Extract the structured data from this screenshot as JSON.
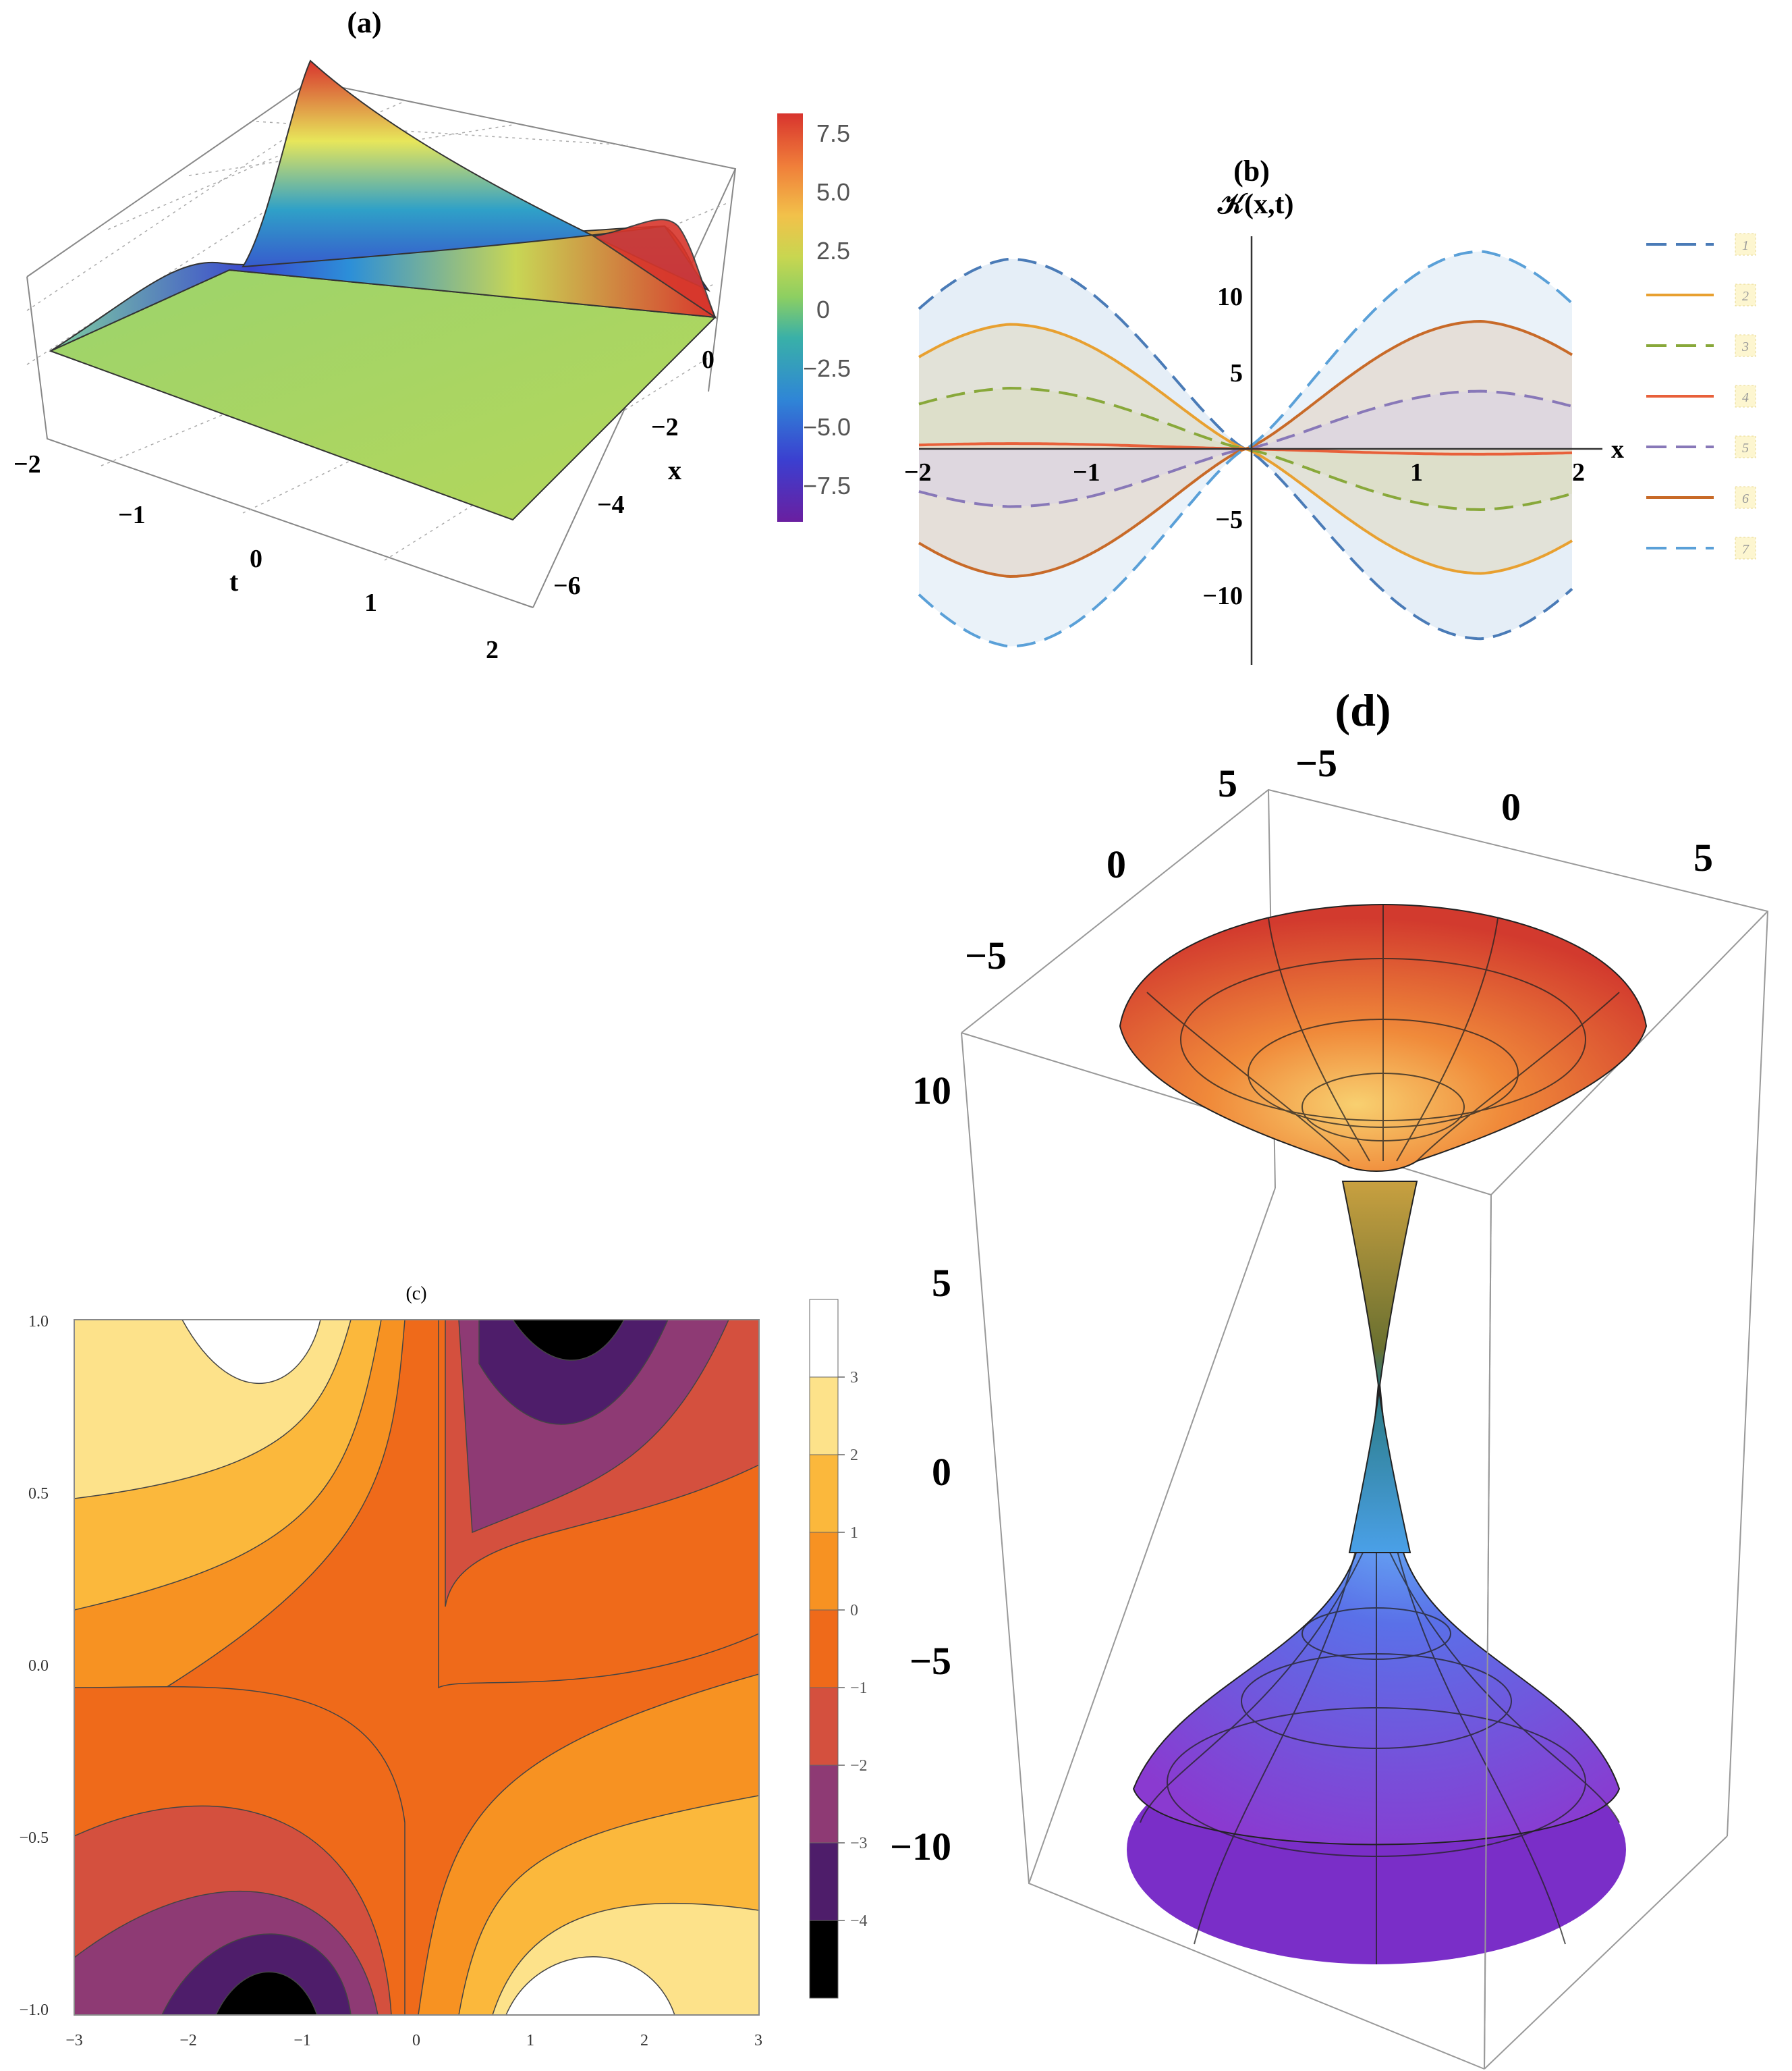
{
  "chart_data": [
    {
      "id": "a",
      "type": "surface3d",
      "title": "(a)",
      "xlabel": "x",
      "ylabel": "t",
      "x_ticks": [
        "0",
        "−2",
        "−4",
        "−6"
      ],
      "t_ticks": [
        "−2",
        "−1",
        "0",
        "1",
        "2"
      ],
      "xlim": [
        -7,
        1
      ],
      "tlim": [
        -2,
        2
      ],
      "colorbar": {
        "ticks": [
          "7.5",
          "5.0",
          "2.5",
          "0",
          "−2.5",
          "−5.0",
          "−7.5"
        ],
        "range": [
          -9,
          8.5
        ],
        "colors": [
          "#6a1fa0",
          "#3b3fd0",
          "#2f86d6",
          "#39b0a8",
          "#8ccf62",
          "#c9d650",
          "#f2c14a",
          "#f07f3a",
          "#d8342e"
        ]
      }
    },
    {
      "id": "b",
      "type": "line",
      "title": "(b)",
      "ylabel": "𝒦(x,t)",
      "xlabel": "x",
      "xlim": [
        -2,
        2
      ],
      "ylim": [
        -14,
        14
      ],
      "x_ticks": [
        "−2",
        "−1",
        "1",
        "2"
      ],
      "y_ticks": [
        "10",
        "5",
        "−5",
        "−10"
      ],
      "series": [
        {
          "name": "1",
          "amplitude": 12.5,
          "sign": 1,
          "dashed": true,
          "color": "#4a7bb7"
        },
        {
          "name": "2",
          "amplitude": 8.2,
          "sign": 1,
          "dashed": false,
          "color": "#e8a030"
        },
        {
          "name": "3",
          "amplitude": 4.0,
          "sign": 1,
          "dashed": true,
          "color": "#88a83a"
        },
        {
          "name": "4",
          "amplitude": 0.35,
          "sign": 1,
          "dashed": false,
          "color": "#e8603a"
        },
        {
          "name": "5",
          "amplitude": 3.8,
          "sign": -1,
          "dashed": true,
          "color": "#8878b8"
        },
        {
          "name": "6",
          "amplitude": 8.4,
          "sign": -1,
          "dashed": false,
          "color": "#c86a28"
        },
        {
          "name": "7",
          "amplitude": 13.0,
          "sign": -1,
          "dashed": true,
          "color": "#5aa0d8"
        }
      ]
    },
    {
      "id": "c",
      "type": "contour",
      "title": "(c)",
      "xlim": [
        -3,
        3
      ],
      "ylim": [
        -1,
        1
      ],
      "x_ticks": [
        "−3",
        "−2",
        "−1",
        "0",
        "1",
        "2",
        "3"
      ],
      "y_ticks": [
        "1.0",
        "0.5",
        "0.0",
        "−0.5",
        "−1.0"
      ],
      "levels": [
        3,
        2,
        1,
        0,
        -1,
        -2,
        -3,
        -4
      ],
      "level_labels": [
        "3",
        "2",
        "1",
        "0",
        "−1",
        "−2",
        "−3",
        "−4"
      ],
      "colors": [
        "#ffffff",
        "#fde28a",
        "#fbb83c",
        "#f79222",
        "#ef6a1a",
        "#d4503e",
        "#8e3a74",
        "#4e1d6a",
        "#000000"
      ]
    },
    {
      "id": "d",
      "type": "surface3d",
      "title": "(d)",
      "top_ticks_a": [
        "5",
        "0",
        "−5"
      ],
      "top_ticks_b": [
        "−5",
        "0",
        "5"
      ],
      "z_ticks": [
        "10",
        "5",
        "0",
        "−5",
        "−10"
      ],
      "zlim": [
        -13,
        13
      ]
    }
  ]
}
